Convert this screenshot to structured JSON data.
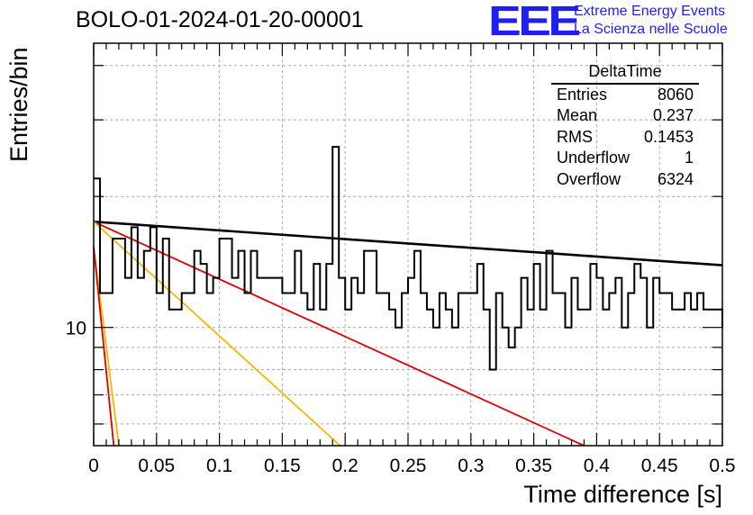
{
  "title": "BOLO-01-2024-01-20-00001",
  "logo": {
    "mark": "EEE",
    "line1": "Extreme Energy Events",
    "line2": "La Scienza nelle Scuole",
    "color": "#1f1ff5"
  },
  "stats_box": {
    "name": "DeltaTime",
    "rows": [
      {
        "label": "Entries",
        "value": "8060"
      },
      {
        "label": "Mean",
        "value": "0.237"
      },
      {
        "label": "RMS",
        "value": "0.1453"
      },
      {
        "label": "Underflow",
        "value": "1"
      },
      {
        "label": "Overflow",
        "value": "6324"
      }
    ]
  },
  "chart_data": {
    "type": "line",
    "xlabel": "Time difference [s]",
    "ylabel": "Entries/bin",
    "xlim": [
      0,
      0.5
    ],
    "ylim": [
      5.35,
      45
    ],
    "yscale": "log",
    "grid": true,
    "x_ticks": [
      "0",
      "0.05",
      "0.1",
      "0.15",
      "0.2",
      "0.25",
      "0.3",
      "0.35",
      "0.4",
      "0.45",
      "0.5"
    ],
    "y_ticks": [
      "10"
    ],
    "histogram": {
      "bin_width": 0.005,
      "values": [
        22,
        12,
        12,
        16,
        16,
        13,
        17,
        13,
        15,
        17,
        12,
        16,
        11,
        11,
        12,
        12,
        15,
        14,
        12,
        13,
        16,
        16,
        13,
        15,
        12,
        15,
        13,
        13,
        13,
        13,
        12,
        12,
        15,
        12,
        11,
        14,
        11,
        14,
        26,
        13,
        11,
        13,
        12,
        15,
        15,
        12,
        12,
        11,
        10,
        12,
        13,
        15,
        12,
        11,
        10,
        12,
        11,
        10,
        12,
        12,
        12,
        14,
        11,
        8,
        12,
        10,
        9,
        10,
        13,
        11,
        14,
        11,
        15,
        12,
        12,
        10,
        13,
        11,
        11,
        14,
        13,
        11,
        12,
        13,
        10,
        12,
        14,
        13,
        10,
        13,
        12,
        12,
        11,
        11,
        12,
        11,
        12,
        11,
        11,
        11,
        10
      ],
      "color": "#000000"
    },
    "fits": [
      {
        "color": "#000000",
        "x": [
          0,
          0.5
        ],
        "y": [
          17.5,
          13.9
        ],
        "width": 2.6
      },
      {
        "color": "#dd0000",
        "x": [
          0,
          0.39
        ],
        "y": [
          17.5,
          5.35
        ],
        "width": 1.8
      },
      {
        "color": "#f5b800",
        "x": [
          0,
          0.196
        ],
        "y": [
          17.5,
          5.35
        ],
        "width": 1.8
      },
      {
        "color": "#f5b800",
        "x": [
          0,
          0.02
        ],
        "y": [
          15.3,
          5.35
        ],
        "width": 1.8
      },
      {
        "color": "#dd0000",
        "x": [
          0,
          0.016
        ],
        "y": [
          15.3,
          5.35
        ],
        "width": 1.8
      }
    ]
  }
}
